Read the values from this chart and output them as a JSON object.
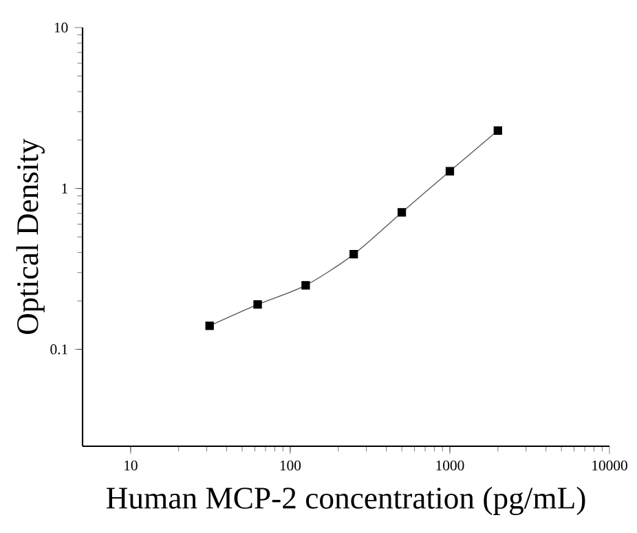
{
  "chart_data": {
    "type": "scatter",
    "xlabel": "Human MCP-2 concentration (pg/mL)",
    "ylabel": "Optical Density",
    "log": "xy",
    "grid": false,
    "xlim": [
      5,
      10000
    ],
    "xticks": [
      10,
      100,
      1000,
      10000
    ],
    "ylim": [
      0.025,
      10
    ],
    "yticks": [
      0.1,
      1,
      10
    ],
    "series": [
      {
        "marker": "square",
        "color": "#000000",
        "x": [
          31.25,
          62.5,
          125,
          250,
          500,
          1000,
          2000
        ],
        "values": [
          0.14,
          0.19,
          0.25,
          0.39,
          0.71,
          1.28,
          2.29
        ]
      },
      {
        "type": "line",
        "marker": "none",
        "line_style": "solid",
        "color": "#555555",
        "x": [
          31.25,
          62.5,
          125,
          250,
          500,
          1000,
          2000
        ],
        "values": [
          0.14,
          0.19,
          0.25,
          0.39,
          0.71,
          1.28,
          2.29
        ]
      }
    ]
  }
}
